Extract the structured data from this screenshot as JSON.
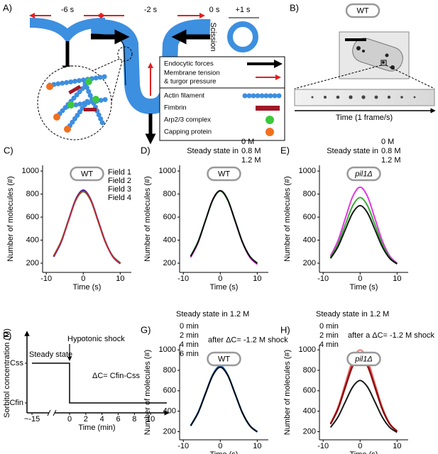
{
  "panel_a": {
    "label": "A)",
    "times": [
      "-6 s",
      "-2 s",
      "0 s",
      "+1 s"
    ],
    "scission": "Scission",
    "legend": [
      "Endocytic forces",
      "Membrane tension",
      "& turgor pressure",
      "Actin filament",
      "Fimbrin",
      "Arp2/3 complex",
      "Capping protein"
    ]
  },
  "panel_b": {
    "label": "B)",
    "badge": "WT",
    "axis_label": "Time (1 frame/s)"
  },
  "chart_data": [
    {
      "type": "line",
      "panel_label": "C)",
      "badge": "WT",
      "x": [
        -8,
        -6,
        -4,
        -2,
        0,
        2,
        4,
        6,
        8,
        10
      ],
      "series": [
        {
          "name": "Field 1",
          "color": "#000000",
          "values": [
            259,
            384,
            570,
            752,
            830,
            752,
            570,
            384,
            259,
            199
          ]
        },
        {
          "name": "Field 2",
          "color": "#2e9e2e",
          "values": [
            265,
            390,
            575,
            748,
            820,
            745,
            565,
            380,
            262,
            205
          ]
        },
        {
          "name": "Field 3",
          "color": "#2020c8",
          "values": [
            255,
            380,
            572,
            758,
            835,
            755,
            572,
            386,
            255,
            195
          ]
        },
        {
          "name": "Field 4",
          "color": "#d02828",
          "values": [
            262,
            386,
            568,
            750,
            825,
            750,
            568,
            382,
            258,
            200
          ]
        }
      ],
      "xlim": [
        -11,
        13
      ],
      "ylim": [
        120,
        1050
      ],
      "xticks": [
        -10,
        0,
        10
      ],
      "yticks": [
        200,
        400,
        600,
        800,
        1000
      ],
      "xlabel": "Time (s)",
      "ylabel": "Number of molecules (#)"
    },
    {
      "type": "line",
      "panel_label": "D)",
      "badge": "WT",
      "legend_title": "Steady state in",
      "x": [
        -8,
        -6,
        -4,
        -2,
        0,
        2,
        4,
        6,
        8,
        10
      ],
      "series": [
        {
          "name": "0 M",
          "color": "#e020e0",
          "values": [
            250,
            378,
            570,
            755,
            828,
            750,
            565,
            378,
            250,
            190
          ]
        },
        {
          "name": "0.8 M",
          "color": "#20a020",
          "values": [
            262,
            388,
            572,
            750,
            826,
            748,
            570,
            382,
            260,
            200
          ]
        },
        {
          "name": "1.2 M",
          "color": "#000000",
          "values": [
            259,
            384,
            570,
            752,
            830,
            752,
            570,
            384,
            259,
            199
          ]
        }
      ],
      "xlim": [
        -11,
        13
      ],
      "ylim": [
        120,
        1050
      ],
      "xticks": [
        -10,
        0,
        10
      ],
      "yticks": [
        200,
        400,
        600,
        800,
        1000
      ],
      "xlabel": "Time (s)",
      "ylabel": "Number of molecules (#)"
    },
    {
      "type": "line",
      "panel_label": "E)",
      "badge": "pil1Δ",
      "legend_title": "Steady state in",
      "x": [
        -8,
        -6,
        -4,
        -2,
        0,
        2,
        4,
        6,
        8,
        10
      ],
      "series": [
        {
          "name": "0 M",
          "color": "#e020e0",
          "values": [
            263,
            394,
            589,
            779,
            860,
            779,
            589,
            394,
            263,
            200
          ]
        },
        {
          "name": "0.8 M",
          "color": "#20a020",
          "values": [
            251,
            365,
            534,
            699,
            770,
            699,
            534,
            365,
            251,
            196
          ]
        },
        {
          "name": "1.2 M",
          "color": "#000000",
          "values": [
            242,
            342,
            492,
            637,
            700,
            637,
            492,
            342,
            242,
            193
          ]
        }
      ],
      "xlim": [
        -11,
        13
      ],
      "ylim": [
        120,
        1050
      ],
      "xticks": [
        -10,
        0,
        10
      ],
      "yticks": [
        200,
        400,
        600,
        800,
        1000
      ],
      "xlabel": "Time (s)",
      "ylabel": "Number of molecules (#)"
    },
    {
      "type": "line",
      "panel_label": "F)",
      "annotations": [
        "Steady state",
        "Hypotonic shock",
        "ΔC= Cfin-Css"
      ],
      "x": [
        -15,
        0,
        0,
        12
      ],
      "series": [
        {
          "color": "#000000",
          "values": [
            1,
            1,
            0.2,
            0.2
          ]
        }
      ],
      "xlim": [
        -17,
        12
      ],
      "ylim": [
        0,
        1.6
      ],
      "xticks": [
        {
          "value": -15,
          "label": "~-15"
        },
        0,
        2,
        4,
        6,
        8,
        10
      ],
      "yticks": [
        {
          "value": 0.2,
          "label": "Cfin"
        },
        {
          "value": 1,
          "label": "Css"
        }
      ],
      "xlabel": "Time (min)",
      "ylabel": "Sorbitol concentration (M)"
    },
    {
      "type": "line",
      "panel_label": "G)",
      "badge": "WT",
      "legend_title": "Steady state in 1.2 M",
      "annotation": "after ΔC= -1.2 M shock",
      "x": [
        -8,
        -6,
        -4,
        -2,
        0,
        2,
        4,
        6,
        8,
        10
      ],
      "series": [
        {
          "name": "0 min",
          "color": "#60d0ee",
          "values": [
            258,
            382,
            570,
            755,
            835,
            755,
            570,
            382,
            258,
            198
          ]
        },
        {
          "name": "2 min",
          "color": "#40a8e8",
          "values": [
            262,
            390,
            578,
            762,
            845,
            760,
            575,
            385,
            260,
            200
          ]
        },
        {
          "name": "4 min",
          "color": "#2070d0",
          "values": [
            255,
            384,
            572,
            752,
            832,
            752,
            570,
            380,
            255,
            196
          ]
        },
        {
          "name": "6 min",
          "color": "#1850a0",
          "values": [
            260,
            386,
            576,
            758,
            840,
            756,
            572,
            384,
            258,
            199
          ]
        },
        {
          "color": "#000000",
          "values": [
            259,
            384,
            570,
            752,
            830,
            752,
            570,
            384,
            259,
            199
          ]
        }
      ],
      "xlim": [
        -11,
        13
      ],
      "ylim": [
        120,
        1050
      ],
      "xticks": [
        -10,
        0,
        10
      ],
      "yticks": [
        200,
        400,
        600,
        800,
        1000
      ],
      "xlabel": "Time (s)",
      "ylabel": "Number of molecules (#)"
    },
    {
      "type": "line",
      "panel_label": "H)",
      "badge": "pil1Δ",
      "legend_title": "Steady state in 1.2 M",
      "annotation": "after a ΔC= -1.2 M shock",
      "x": [
        -8,
        -6,
        -4,
        -2,
        0,
        2,
        4,
        6,
        8,
        10
      ],
      "series": [
        {
          "name": "0 min",
          "color": "#e87070",
          "values": [
            282,
            440,
            674,
            902,
            1000,
            902,
            674,
            440,
            282,
            207
          ]
        },
        {
          "name": "2 min",
          "color": "#c02020",
          "values": [
            277,
            427,
            650,
            867,
            960,
            867,
            650,
            427,
            277,
            205
          ]
        },
        {
          "name": "4 min",
          "color": "#800000",
          "values": [
            273,
            417,
            631,
            840,
            930,
            840,
            631,
            417,
            273,
            203
          ]
        },
        {
          "color": "#000000",
          "values": [
            242,
            342,
            492,
            637,
            700,
            637,
            492,
            342,
            242,
            193
          ]
        }
      ],
      "xlim": [
        -11,
        13
      ],
      "ylim": [
        120,
        1050
      ],
      "xticks": [
        -10,
        0,
        10
      ],
      "yticks": [
        200,
        400,
        600,
        800,
        1000
      ],
      "xlabel": "Time (s)",
      "ylabel": "Number of molecules (#)"
    }
  ]
}
